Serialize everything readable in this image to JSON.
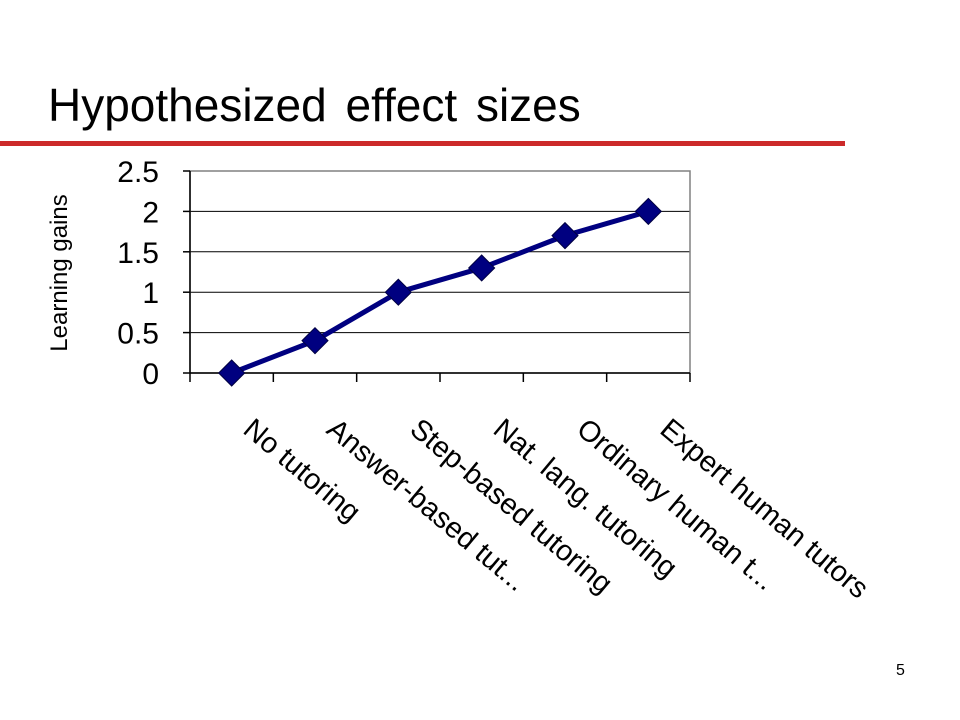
{
  "slide": {
    "title": "Hypothesized effect sizes",
    "number": "5",
    "accent_color": "#cc2a2a"
  },
  "chart_data": {
    "type": "line",
    "title": "",
    "xlabel": "",
    "ylabel": "Learning gains",
    "categories": [
      "No tutoring",
      "Answer-based tut...",
      "Step-based tutoring",
      "Nat. lang. tutoring",
      "Ordinary human t...",
      "Expert human tutors"
    ],
    "series": [
      {
        "values": [
          0,
          0.4,
          1.0,
          1.3,
          1.7,
          2.0
        ],
        "color": "#000080"
      }
    ],
    "ylim": [
      0,
      2.5
    ],
    "yticks": [
      0,
      0.5,
      1,
      1.5,
      2,
      2.5
    ],
    "ytick_labels": [
      "0",
      "0.5",
      "1",
      "1.5",
      "2",
      "2.5"
    ],
    "grid": true,
    "legend": "none",
    "marker": "diamond"
  }
}
